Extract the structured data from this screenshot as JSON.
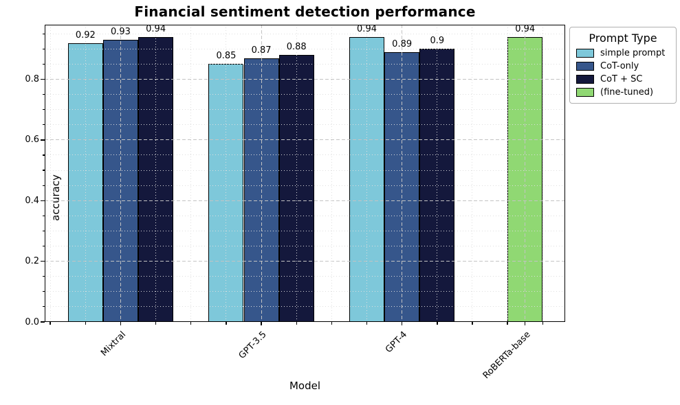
{
  "chart_data": {
    "type": "bar",
    "title": "Financial sentiment detection performance",
    "xlabel": "Model",
    "ylabel": "accuracy",
    "categories": [
      "Mixtral",
      "GPT-3.5",
      "GPT-4",
      "RoBERTa-base"
    ],
    "series": [
      {
        "name": "simple prompt",
        "color": "#7ec8da",
        "values": [
          0.92,
          0.85,
          0.94,
          null
        ]
      },
      {
        "name": "CoT-only",
        "color": "#36568b",
        "values": [
          0.93,
          0.87,
          0.89,
          null
        ]
      },
      {
        "name": "CoT + SC",
        "color": "#14183c",
        "values": [
          0.94,
          0.88,
          0.9,
          null
        ]
      },
      {
        "name": "(fine-tuned)",
        "color": "#90d873",
        "values": [
          null,
          null,
          null,
          0.94
        ]
      }
    ],
    "bar_value_labels": [
      "0.92",
      "0.93",
      "0.94",
      "0.85",
      "0.87",
      "0.88",
      "0.94",
      "0.89",
      "0.9",
      "0.94"
    ],
    "x_positions": [
      0,
      1,
      2,
      2.875
    ],
    "xlim": [
      -0.54,
      3.16
    ],
    "ylim": [
      0,
      0.98
    ],
    "yticks": [
      "0.0",
      "0.2",
      "0.4",
      "0.6",
      "0.8"
    ],
    "ytick_step": 0.2,
    "ytick_minor_step": 0.05,
    "xtick_minor_step": 0.25,
    "bar_width_units": 0.25,
    "grid": true,
    "grid_major_color": "#c3c3c3",
    "grid_minor_color": "#dedede",
    "legend": {
      "title": "Prompt Type",
      "position": "upper-right-outside"
    }
  }
}
